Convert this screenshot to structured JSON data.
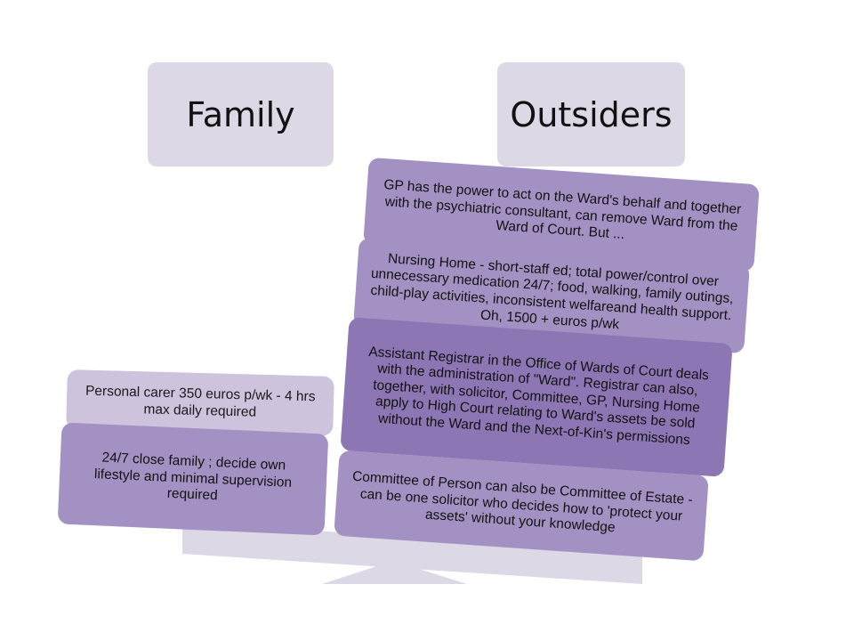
{
  "columns": {
    "family": {
      "label": "Family"
    },
    "outsiders": {
      "label": "Outsiders"
    }
  },
  "family_items": [
    {
      "text": "Personal carer 350 euros p/wk - 4 hrs max daily required"
    },
    {
      "text": "24/7 close family ; decide own lifestyle and minimal supervision required"
    }
  ],
  "outsider_items": [
    {
      "text": "GP has the power to act on the Ward's behalf and together with the  psychiatric consultant, can remove Ward  from the Ward of Court.  But ..."
    },
    {
      "text": "Nursing Home - short-staff ed; total power/control over unnecessary medication 24/7; food, walking, family outings, child-play activities, inconsistent welfareand health support.  Oh, 1500 + euros p/wk"
    },
    {
      "text": "Assistant Registrar in the Office of Wards of Court deals with the administration of \"Ward\".  Registrar can also, together, with solicitor, Committee, GP, Nursing Home apply to High Court relating to Ward's assets be sold without the Ward and the Next-of-Kin's permissions"
    },
    {
      "text": "Committee of Person can also be Committee of Estate - can be one solicitor who decides how to 'protect your assets' without your knowledge"
    }
  ],
  "colors": {
    "header_bg": "#dcd8e5",
    "card_light": "#cdc3dd",
    "card_mid": "#a491c4",
    "card_dark": "#8d76b4",
    "seesaw": "#dcd8e5"
  }
}
